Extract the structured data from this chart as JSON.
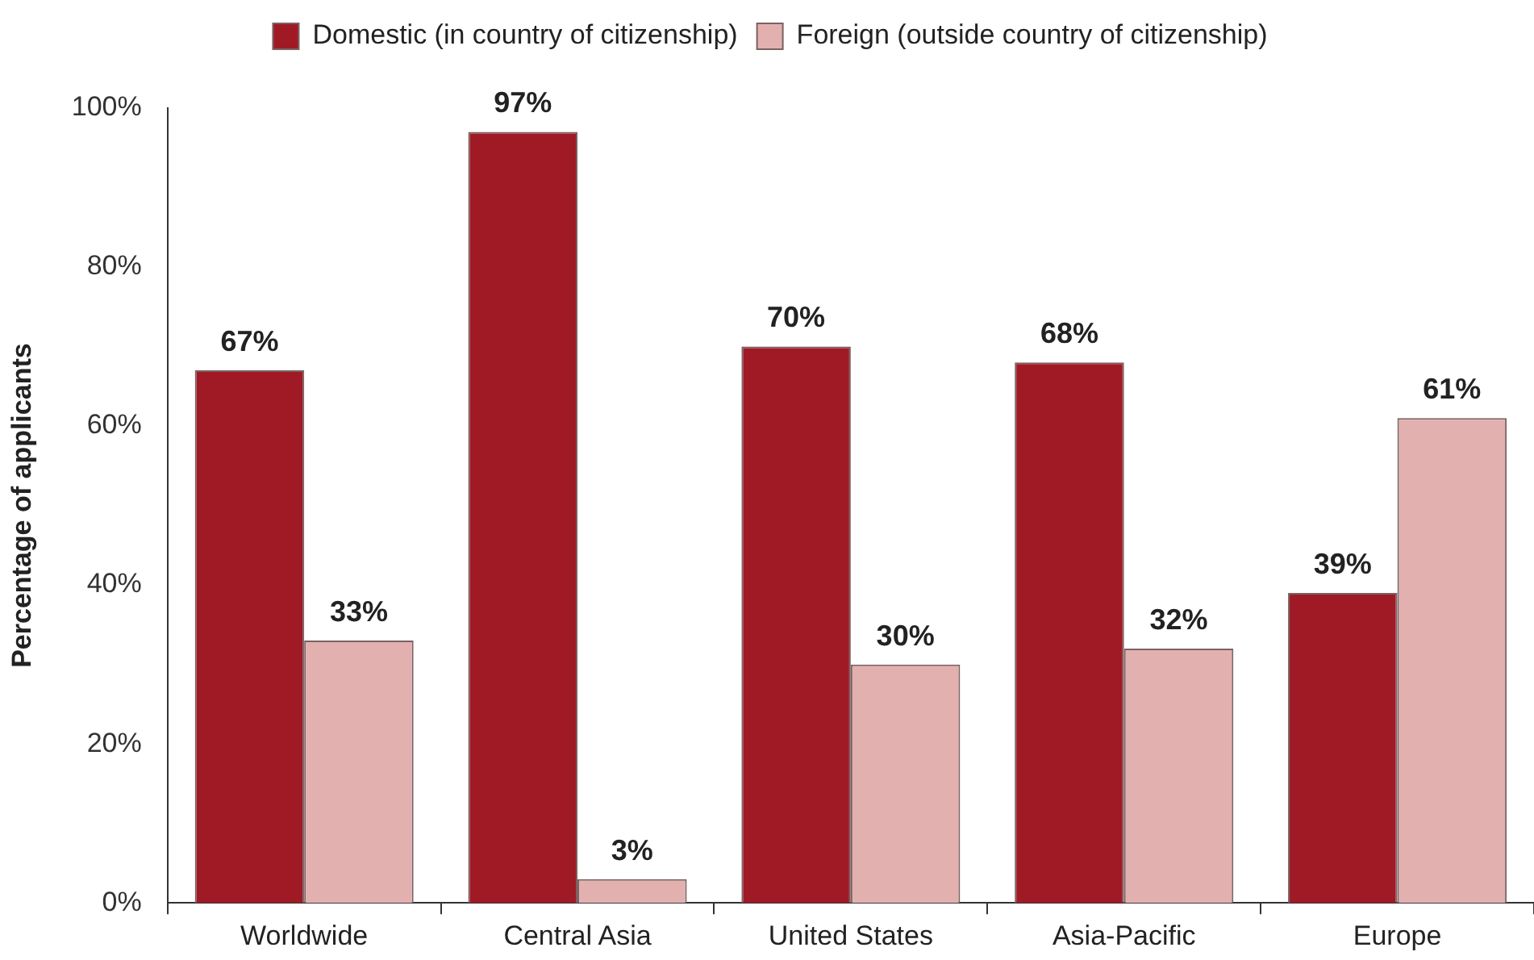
{
  "chart_data": {
    "type": "bar",
    "ylabel": "Percentage of applicants",
    "categories": [
      "Worldwide",
      "Central Asia",
      "United States",
      "Asia-Pacific",
      "Europe"
    ],
    "series": [
      {
        "name": "Domestic (in country of citizenship)",
        "color": "#a01a26",
        "values": [
          67,
          97,
          70,
          68,
          39
        ],
        "value_labels": [
          "67%",
          "97%",
          "70%",
          "68%",
          "39%"
        ]
      },
      {
        "name": "Foreign (outside country of citizenship)",
        "color": "#e3b0b0",
        "values": [
          33,
          3,
          30,
          32,
          61
        ],
        "value_labels": [
          "33%",
          "3%",
          "30%",
          "32%",
          "61%"
        ]
      }
    ],
    "ylim": [
      0,
      100
    ],
    "yticks": [
      {
        "value": 0,
        "label": "0%"
      },
      {
        "value": 20,
        "label": "20%"
      },
      {
        "value": 40,
        "label": "40%"
      },
      {
        "value": 60,
        "label": "60%"
      },
      {
        "value": 80,
        "label": "80%"
      },
      {
        "value": 100,
        "label": "100%"
      }
    ],
    "grid": false,
    "legend": "top"
  }
}
